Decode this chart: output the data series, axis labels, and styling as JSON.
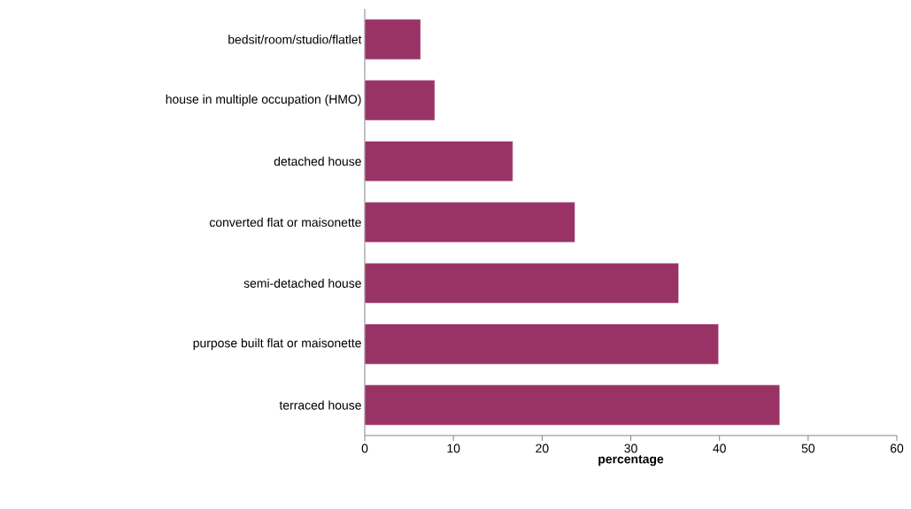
{
  "chart_data": {
    "type": "bar",
    "orientation": "horizontal",
    "xlabel": "percentage",
    "categories": [
      "bedsit/room/studio/flatlet",
      "house in multiple occupation (HMO)",
      "detached house",
      "converted flat or maisonette",
      "semi-detached house",
      "purpose built flat or maisonette",
      "terraced house"
    ],
    "values": [
      6.3,
      7.9,
      16.7,
      23.7,
      35.4,
      39.9,
      46.8
    ],
    "color": "#993366",
    "xlim": [
      0,
      60
    ],
    "xticks": [
      0,
      10,
      20,
      30,
      40,
      50,
      60
    ],
    "grid": false
  }
}
